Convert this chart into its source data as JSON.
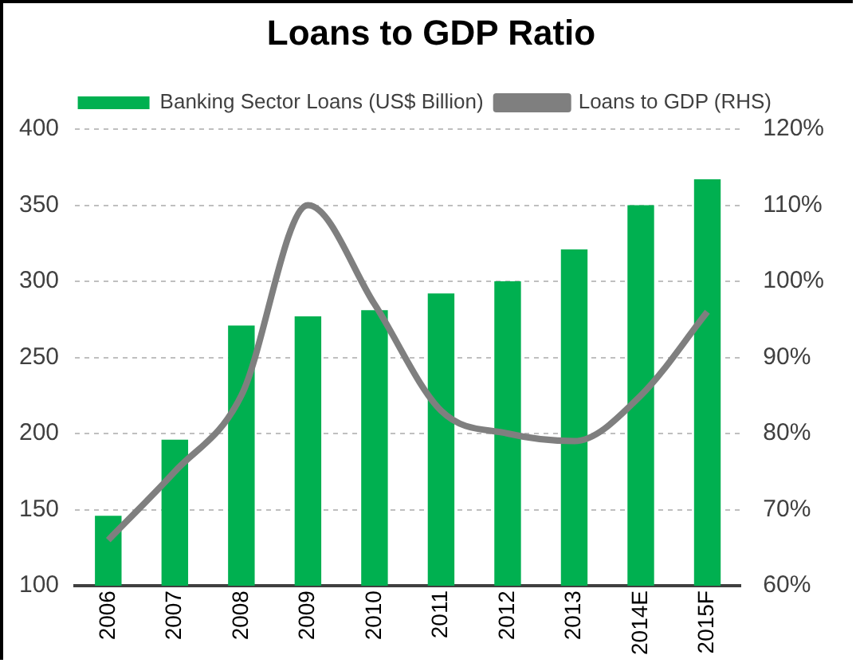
{
  "chart_data": {
    "type": "bar",
    "title": "Loans to GDP Ratio",
    "categories": [
      "2006",
      "2007",
      "2008",
      "2009",
      "2010",
      "2011",
      "2012",
      "2013",
      "2014E",
      "2015F"
    ],
    "series": [
      {
        "name": "Banking Sector Loans (US$ Billion)",
        "color": "#00b050",
        "values": [
          146,
          196,
          271,
          277,
          281,
          292,
          300,
          321,
          350,
          367
        ]
      },
      {
        "name": "Loans to GDP (RHS)",
        "type": "line",
        "axis": "y2",
        "color": "#7f7f7f",
        "values": [
          66,
          75,
          85,
          110,
          97,
          83,
          80,
          79,
          85,
          96
        ]
      }
    ],
    "ylim": [
      100,
      400
    ],
    "yticks": [
      100,
      150,
      200,
      250,
      300,
      350,
      400
    ],
    "y2lim": [
      60,
      120
    ],
    "y2ticks": [
      {
        "value": 60,
        "label": "60%"
      },
      {
        "value": 70,
        "label": "70%"
      },
      {
        "value": 80,
        "label": "80%"
      },
      {
        "value": 90,
        "label": "90%"
      },
      {
        "value": 100,
        "label": "100%"
      },
      {
        "value": 110,
        "label": "110%"
      },
      {
        "value": 120,
        "label": "120%"
      }
    ],
    "grid": "y",
    "legend": "top",
    "marker": "none"
  }
}
